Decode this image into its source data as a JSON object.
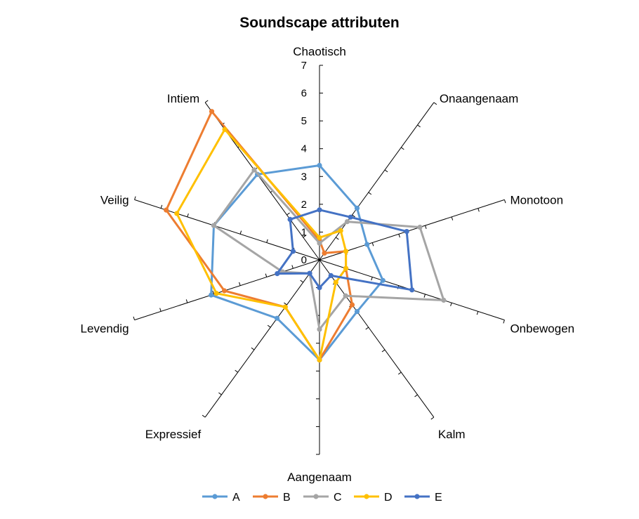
{
  "chart_data": {
    "type": "radar",
    "title": "Soundscape attributen",
    "axes": [
      "Chaotisch",
      "Onaangenaam",
      "Monotoon",
      "Onbewogen",
      "Kalm",
      "Aangenaam",
      "Expressief",
      "Levendig",
      "Veilig",
      "Intiem"
    ],
    "rlim": [
      0,
      7
    ],
    "ticks": [
      "0",
      "1",
      "2",
      "3",
      "4",
      "5",
      "6",
      "7"
    ],
    "grid": false,
    "legend_position": "bottom",
    "series": [
      {
        "name": "A",
        "color": "#5B9BD5",
        "values": [
          3.4,
          2.3,
          1.8,
          2.4,
          2.3,
          3.6,
          2.6,
          4.1,
          4.0,
          3.8
        ]
      },
      {
        "name": "B",
        "color": "#ED7D31",
        "values": [
          0.7,
          0.3,
          1.0,
          1.0,
          2.0,
          3.6,
          2.1,
          3.6,
          5.8,
          6.6
        ]
      },
      {
        "name": "C",
        "color": "#A5A5A5",
        "values": [
          0.6,
          1.7,
          3.8,
          4.7,
          1.6,
          2.5,
          0.6,
          1.4,
          4.0,
          4.0
        ]
      },
      {
        "name": "D",
        "color": "#FFC000",
        "values": [
          0.8,
          1.3,
          1.0,
          1.0,
          1.0,
          3.6,
          2.1,
          3.9,
          5.4,
          5.8
        ]
      },
      {
        "name": "E",
        "color": "#4472C4",
        "values": [
          1.8,
          1.9,
          3.3,
          3.5,
          0.7,
          1.0,
          0.6,
          1.6,
          1.0,
          1.8
        ]
      }
    ]
  }
}
